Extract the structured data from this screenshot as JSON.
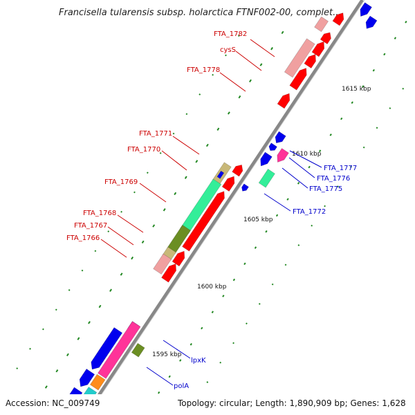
{
  "title": "Francisella tularensis subsp. holarctica FTNF002-00, complet...",
  "footer": {
    "accession": "Accession: NC_009749",
    "summary": "Topology: circular; Length: 1,890,909 bp; Genes: 1,628"
  },
  "ticks": [
    "1615 kbp",
    "1610 kbp",
    "1605 kbp",
    "1600 kbp",
    "1595 kbp"
  ],
  "labels_red": [
    "FTA_1782",
    "cysS",
    "FTA_1778",
    "FTA_1771",
    "FTA_1770",
    "FTA_1769",
    "FTA_1768",
    "FTA_1767",
    "FTA_1766"
  ],
  "labels_blue": [
    "FTA_1777",
    "FTA_1776",
    "FTA_1775",
    "FTA_1772",
    "lpxK",
    "polA"
  ],
  "colors": {
    "backbone": "#888888",
    "forward_cds": "#ff0000",
    "reverse_cds": "#0000ee",
    "pink": "#f0a0a0",
    "magenta": "#ff3399",
    "green": "#33ee99",
    "olive": "#6b8e23",
    "tan": "#c8b878",
    "orange": "#ff8c1a",
    "cyan": "#22cccc",
    "dots": "#228822"
  }
}
